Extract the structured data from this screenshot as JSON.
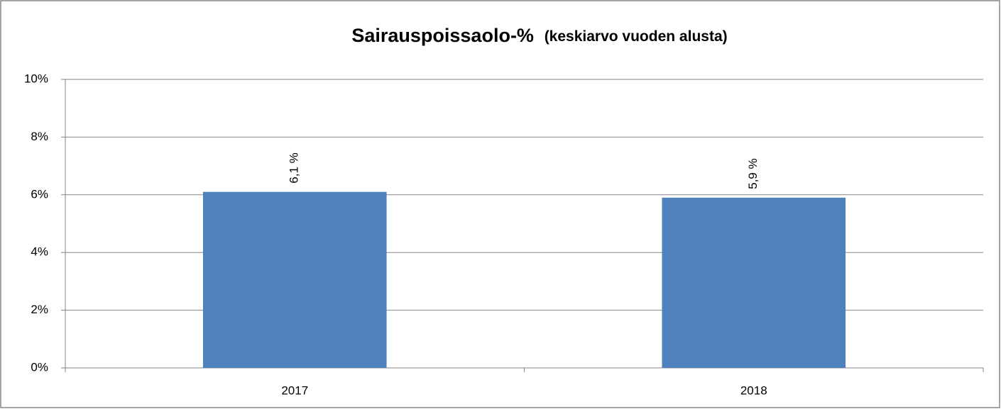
{
  "chart_data": {
    "type": "bar",
    "title": "Sairauspoissaolo-%",
    "subtitle": "(keskiarvo vuoden alusta)",
    "categories": [
      "2017",
      "2018"
    ],
    "values": [
      6.1,
      5.9
    ],
    "value_labels": [
      "6,1 %",
      "5,9 %"
    ],
    "color": "#4f81bd",
    "ylim": [
      0,
      10
    ],
    "yticks": [
      {
        "value": 0,
        "label": "0%"
      },
      {
        "value": 2,
        "label": "2%"
      },
      {
        "value": 4,
        "label": "4%"
      },
      {
        "value": 6,
        "label": "6%"
      },
      {
        "value": 8,
        "label": "8%"
      },
      {
        "value": 10,
        "label": "10%"
      }
    ],
    "grid": true
  }
}
